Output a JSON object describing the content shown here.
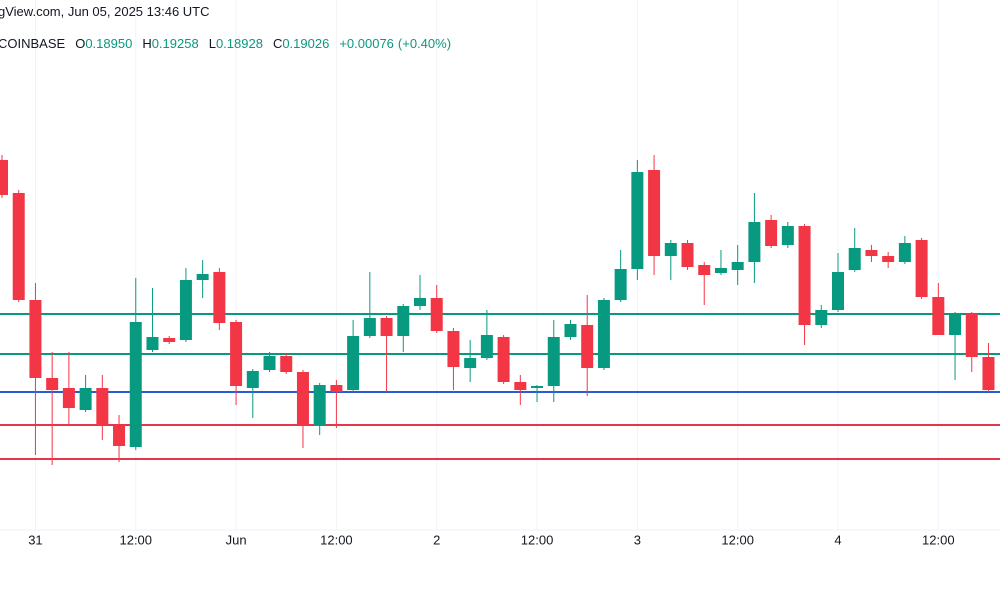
{
  "chart_data": {
    "type": "candlestick",
    "source_line": "gView.com, Jun 05, 2025 13:46 UTC",
    "legend": {
      "exchange": "COINBASE",
      "fields": [
        {
          "label": "O",
          "value": "0.18950"
        },
        {
          "label": "H",
          "value": "0.19258"
        },
        {
          "label": "L",
          "value": "0.18928"
        },
        {
          "label": "C",
          "value": "0.19026"
        }
      ],
      "change": "+0.00076",
      "change_pct": "(+0.40%)"
    },
    "categories": [
      null,
      null,
      "31",
      null,
      null,
      null,
      null,
      null,
      "12:00",
      null,
      null,
      null,
      null,
      null,
      "Jun",
      null,
      null,
      null,
      null,
      null,
      "12:00",
      null,
      null,
      null,
      null,
      null,
      "2",
      null,
      null,
      null,
      null,
      null,
      "12:00",
      null,
      null,
      null,
      null,
      null,
      "3",
      null,
      null,
      null,
      null,
      null,
      "12:00",
      null,
      null,
      null,
      null,
      null,
      "4",
      null,
      null,
      null,
      null,
      null,
      "12:00",
      null,
      null,
      null
    ],
    "open": [
      0.19464,
      0.19398,
      0.19184,
      0.19028,
      0.19008,
      0.18964,
      0.19008,
      0.18934,
      0.1889,
      0.19084,
      0.19108,
      0.19104,
      0.19224,
      0.1924,
      0.1914,
      0.19008,
      0.19044,
      0.19072,
      0.1904,
      0.18934,
      0.19014,
      0.19004,
      0.19112,
      0.19148,
      0.19112,
      0.19172,
      0.19188,
      0.19122,
      0.19048,
      0.19068,
      0.1911,
      0.1902,
      0.19008,
      0.19012,
      0.1911,
      0.19134,
      0.19048,
      0.19184,
      0.19246,
      0.19444,
      0.19272,
      0.19298,
      0.19254,
      0.19238,
      0.19244,
      0.1926,
      0.19344,
      0.19294,
      0.19332,
      0.19134,
      0.19164,
      0.19244,
      0.19284,
      0.19272,
      0.1926,
      0.19304,
      0.1919,
      0.19114,
      0.19156,
      0.1907
    ],
    "high": [
      0.19474,
      0.19404,
      0.19218,
      0.1908,
      0.1908,
      0.19034,
      0.19034,
      0.18954,
      0.19228,
      0.19208,
      0.19112,
      0.19248,
      0.19264,
      0.19248,
      0.19144,
      0.19046,
      0.1908,
      0.19076,
      0.19044,
      0.19018,
      0.19024,
      0.19144,
      0.1924,
      0.19152,
      0.19176,
      0.19234,
      0.19214,
      0.19128,
      0.19104,
      0.19164,
      0.19114,
      0.19034,
      0.19014,
      0.19144,
      0.19144,
      0.19194,
      0.19188,
      0.19284,
      0.19464,
      0.19474,
      0.19304,
      0.19304,
      0.1926,
      0.19284,
      0.19294,
      0.19398,
      0.19354,
      0.1934,
      0.19336,
      0.19174,
      0.19278,
      0.19328,
      0.19294,
      0.1928,
      0.19312,
      0.19308,
      0.19218,
      0.1916,
      0.1916,
      0.19098
    ],
    "low": [
      0.19388,
      0.1918,
      0.18874,
      0.18854,
      0.18934,
      0.1896,
      0.18904,
      0.1886,
      0.18884,
      0.1908,
      0.19096,
      0.191,
      0.19188,
      0.19124,
      0.18974,
      0.18948,
      0.1904,
      0.19036,
      0.18888,
      0.18914,
      0.18928,
      0.19,
      0.19108,
      0.19,
      0.1908,
      0.19164,
      0.19118,
      0.19004,
      0.1902,
      0.19064,
      0.19016,
      0.18974,
      0.1898,
      0.1898,
      0.19104,
      0.18992,
      0.19044,
      0.1918,
      0.19224,
      0.19234,
      0.19224,
      0.19244,
      0.19174,
      0.19234,
      0.19214,
      0.19218,
      0.19288,
      0.19288,
      0.19094,
      0.19128,
      0.1916,
      0.1924,
      0.1926,
      0.19248,
      0.19256,
      0.19186,
      0.19114,
      0.19024,
      0.1904,
      0.19
    ],
    "close": [
      0.19394,
      0.19184,
      0.19028,
      0.19004,
      0.18968,
      0.19008,
      0.18934,
      0.18892,
      0.1914,
      0.1911,
      0.191,
      0.19224,
      0.19236,
      0.19138,
      0.19012,
      0.19042,
      0.19072,
      0.1904,
      0.18934,
      0.19014,
      0.19,
      0.19112,
      0.19148,
      0.19112,
      0.19172,
      0.19188,
      0.19122,
      0.1905,
      0.19068,
      0.19114,
      0.1902,
      0.19004,
      0.19012,
      0.1911,
      0.19136,
      0.19048,
      0.19184,
      0.19246,
      0.1944,
      0.19272,
      0.19298,
      0.1925,
      0.19234,
      0.19248,
      0.1926,
      0.1934,
      0.19292,
      0.19332,
      0.19134,
      0.19164,
      0.1924,
      0.19288,
      0.19272,
      0.1926,
      0.19298,
      0.1919,
      0.19114,
      0.19156,
      0.1907,
      0.19004
    ],
    "up_color": "#089981",
    "down_color": "#f23645",
    "ylim": [
      0.18724,
      0.19784
    ],
    "hlines": [
      {
        "value": 0.19156,
        "color": "#089981"
      },
      {
        "value": 0.19076,
        "color": "#089981"
      },
      {
        "value": 0.19,
        "color": "#2a5bd7"
      },
      {
        "value": 0.18934,
        "color": "#e5364a"
      },
      {
        "value": 0.18866,
        "color": "#e5364a"
      }
    ],
    "grid": true
  }
}
